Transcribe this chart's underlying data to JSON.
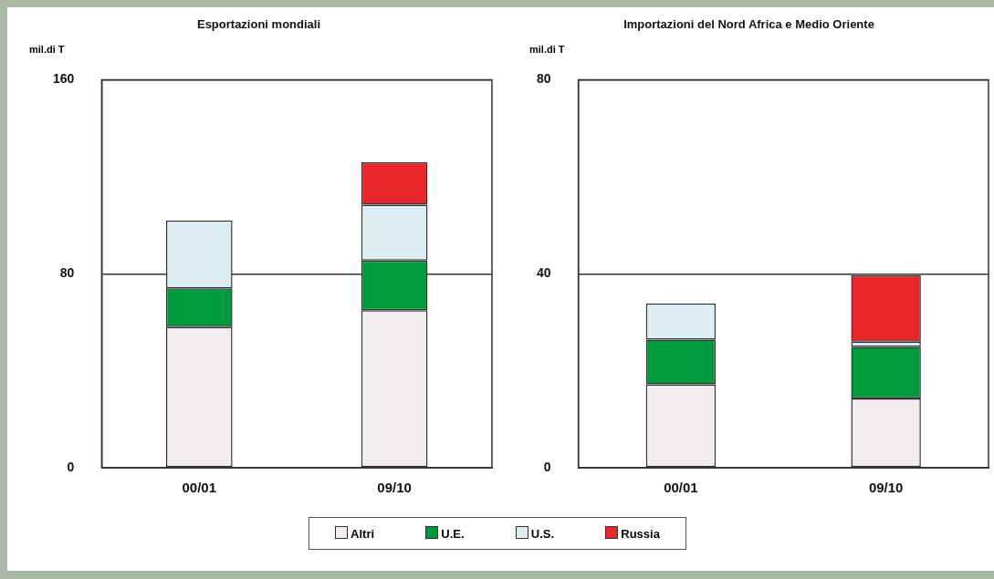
{
  "chart_data": [
    {
      "type": "bar",
      "title": "Esportazioni mondiali",
      "ylabel": "mil.di T",
      "categories": [
        "00/01",
        "09/10"
      ],
      "stacked": true,
      "ylim": [
        0,
        160
      ],
      "yticks": [
        0,
        80,
        160
      ],
      "grid": "y",
      "legend": "bottom",
      "series": [
        {
          "name": "Altri",
          "color": "#f3ecec",
          "values": [
            58,
            65
          ]
        },
        {
          "name": "U.E.",
          "color": "#009a3e",
          "values": [
            16,
            20.5
          ]
        },
        {
          "name": "U.S.",
          "color": "#dcedf3",
          "values": [
            28,
            23
          ]
        },
        {
          "name": "Russia",
          "color": "#e8272b",
          "values": [
            null,
            17.5
          ]
        }
      ]
    },
    {
      "type": "bar",
      "title": "Importazioni del Nord Africa e Medio Oriente",
      "ylabel": "mil.di T",
      "categories": [
        "00/01",
        "09/10"
      ],
      "stacked": true,
      "ylim": [
        0,
        80
      ],
      "yticks": [
        0,
        40,
        80
      ],
      "grid": "y",
      "legend": "bottom",
      "series": [
        {
          "name": "Altri",
          "color": "#f3ecec",
          "values": [
            17.2,
            14.3
          ]
        },
        {
          "name": "U.E.",
          "color": "#009a3e",
          "values": [
            9.2,
            10.6
          ]
        },
        {
          "name": "U.S.",
          "color": "#dcedf3",
          "values": [
            7.5,
            1.1
          ]
        },
        {
          "name": "Russia",
          "color": "#e8272b",
          "values": [
            null,
            13.7
          ]
        }
      ]
    }
  ]
}
